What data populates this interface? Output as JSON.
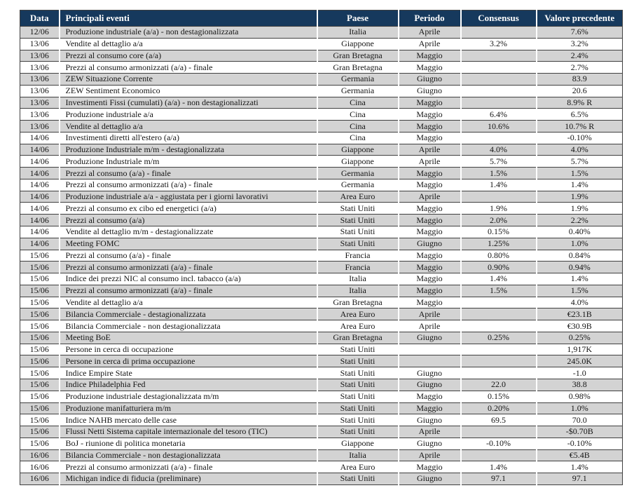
{
  "table": {
    "columns": [
      {
        "key": "data",
        "label": "Data"
      },
      {
        "key": "event",
        "label": "Principali eventi"
      },
      {
        "key": "country",
        "label": "Paese"
      },
      {
        "key": "period",
        "label": "Periodo"
      },
      {
        "key": "consensus",
        "label": "Consensus"
      },
      {
        "key": "previous",
        "label": "Valore precedente"
      }
    ],
    "rows": [
      [
        "12/06",
        "Produzione industriale (a/a) - non destagionalizzata",
        "Italia",
        "Aprile",
        "",
        "7.6%"
      ],
      [
        "13/06",
        "Vendite al dettaglio a/a",
        "Giappone",
        "Aprile",
        "3.2%",
        "3.2%"
      ],
      [
        "13/06",
        "Prezzi al consumo core (a/a)",
        "Gran Bretagna",
        "Maggio",
        "",
        "2.4%"
      ],
      [
        "13/06",
        "Prezzi al consumo armonizzati (a/a) - finale",
        "Gran Bretagna",
        "Maggio",
        "",
        "2.7%"
      ],
      [
        "13/06",
        "ZEW Situazione Corrente",
        "Germania",
        "Giugno",
        "",
        "83.9"
      ],
      [
        "13/06",
        "ZEW Sentiment Economico",
        "Germania",
        "Giugno",
        "",
        "20.6"
      ],
      [
        "13/06",
        "Investimenti Fissi (cumulati) (a/a) - non destagionalizzati",
        "Cina",
        "Maggio",
        "",
        "8.9% R"
      ],
      [
        "13/06",
        "Produzione industriale a/a",
        "Cina",
        "Maggio",
        "6.4%",
        "6.5%"
      ],
      [
        "13/06",
        "Vendite al dettaglio a/a",
        "Cina",
        "Maggio",
        "10.6%",
        "10.7% R"
      ],
      [
        "14/06",
        "Investimenti diretti all'estero (a/a)",
        "Cina",
        "Maggio",
        "",
        "-0.10%"
      ],
      [
        "14/06",
        "Produzione Industriale m/m - destagionalizzata",
        "Giappone",
        "Aprile",
        "4.0%",
        "4.0%"
      ],
      [
        "14/06",
        "Produzione Industriale m/m",
        "Giappone",
        "Aprile",
        "5.7%",
        "5.7%"
      ],
      [
        "14/06",
        "Prezzi al consumo (a/a) - finale",
        "Germania",
        "Maggio",
        "1.5%",
        "1.5%"
      ],
      [
        "14/06",
        "Prezzi al consumo armonizzati (a/a) - finale",
        "Germania",
        "Maggio",
        "1.4%",
        "1.4%"
      ],
      [
        "14/06",
        "Produzione industriale a/a - aggiustata per i giorni lavorativi",
        "Area Euro",
        "Aprile",
        "",
        "1.9%"
      ],
      [
        "14/06",
        "Prezzi al consumo ex cibo ed energetici  (a/a)",
        "Stati Uniti",
        "Maggio",
        "1.9%",
        "1.9%"
      ],
      [
        "14/06",
        "Prezzi al consumo   (a/a)",
        "Stati Uniti",
        "Maggio",
        "2.0%",
        "2.2%"
      ],
      [
        "14/06",
        "Vendite al dettaglio m/m - destagionalizzate",
        "Stati Uniti",
        "Maggio",
        "0.15%",
        "0.40%"
      ],
      [
        "14/06",
        "Meeting FOMC",
        "Stati Uniti",
        "Giugno",
        "1.25%",
        "1.0%"
      ],
      [
        "15/06",
        "Prezzi al consumo (a/a) - finale",
        "Francia",
        "Maggio",
        "0.80%",
        "0.84%"
      ],
      [
        "15/06",
        "Prezzi al consumo armonizzati (a/a) - finale",
        "Francia",
        "Maggio",
        "0.90%",
        "0.94%"
      ],
      [
        "15/06",
        "Indice dei prezzi NIC al consumo incl. tabacco (a/a)",
        "Italia",
        "Maggio",
        "1.4%",
        "1.4%"
      ],
      [
        "15/06",
        "Prezzi al consumo armonizzati (a/a) - finale",
        "Italia",
        "Maggio",
        "1.5%",
        "1.5%"
      ],
      [
        "15/06",
        "Vendite al dettaglio a/a",
        "Gran Bretagna",
        "Maggio",
        "",
        "4.0%"
      ],
      [
        "15/06",
        "Bilancia Commerciale - destagionalizzata",
        "Area Euro",
        "Aprile",
        "",
        "€23.1B"
      ],
      [
        "15/06",
        "Bilancia Commerciale - non destagionalizzata",
        "Area Euro",
        "Aprile",
        "",
        "€30.9B"
      ],
      [
        "15/06",
        "Meeting BoE",
        "Gran Bretagna",
        "Giugno",
        "0.25%",
        "0.25%"
      ],
      [
        "15/06",
        "Persone in cerca di occupazione",
        "Stati Uniti",
        "",
        "",
        "1,917K"
      ],
      [
        "15/06",
        "Persone in cerca di prima occupazione",
        "Stati Uniti",
        "",
        "",
        "245.0K"
      ],
      [
        "15/06",
        "Indice Empire State",
        "Stati Uniti",
        "Giugno",
        "",
        "-1.0"
      ],
      [
        "15/06",
        "Indice Philadelphia Fed",
        "Stati Uniti",
        "Giugno",
        "22.0",
        "38.8"
      ],
      [
        "15/06",
        "Produzione industriale destagionalizzata m/m",
        "Stati Uniti",
        "Maggio",
        "0.15%",
        "0.98%"
      ],
      [
        "15/06",
        "Produzione manifatturiera m/m",
        "Stati Uniti",
        "Maggio",
        "0.20%",
        "1.0%"
      ],
      [
        "15/06",
        "Indice NAHB mercato delle case",
        "Stati Uniti",
        "Giugno",
        "69.5",
        "70.0"
      ],
      [
        "15/06",
        "Flussi Netti Sistema capitale internazionale del tesoro (TIC)",
        "Stati Uniti",
        "Aprile",
        "",
        "-$0.70B"
      ],
      [
        "15/06",
        "BoJ - riunione di politica monetaria",
        "Giappone",
        "Giugno",
        "-0.10%",
        "-0.10%"
      ],
      [
        "16/06",
        "Bilancia Commerciale - non destagionalizzata",
        "Italia",
        "Aprile",
        "",
        "€5.4B"
      ],
      [
        "16/06",
        "Prezzi al consumo armonizzati (a/a) - finale",
        "Area Euro",
        "Maggio",
        "1.4%",
        "1.4%"
      ],
      [
        "16/06",
        "Michigan indice di fiducia (preliminare)",
        "Stati Uniti",
        "Giugno",
        "97.1",
        "97.1"
      ]
    ]
  },
  "colors": {
    "header_bg": "#16395d",
    "header_text": "#ffffff",
    "row_alt_bg": "#d3d3d3",
    "row_base_bg": "#ffffff",
    "border": "#404040",
    "body_text": "#151515"
  }
}
